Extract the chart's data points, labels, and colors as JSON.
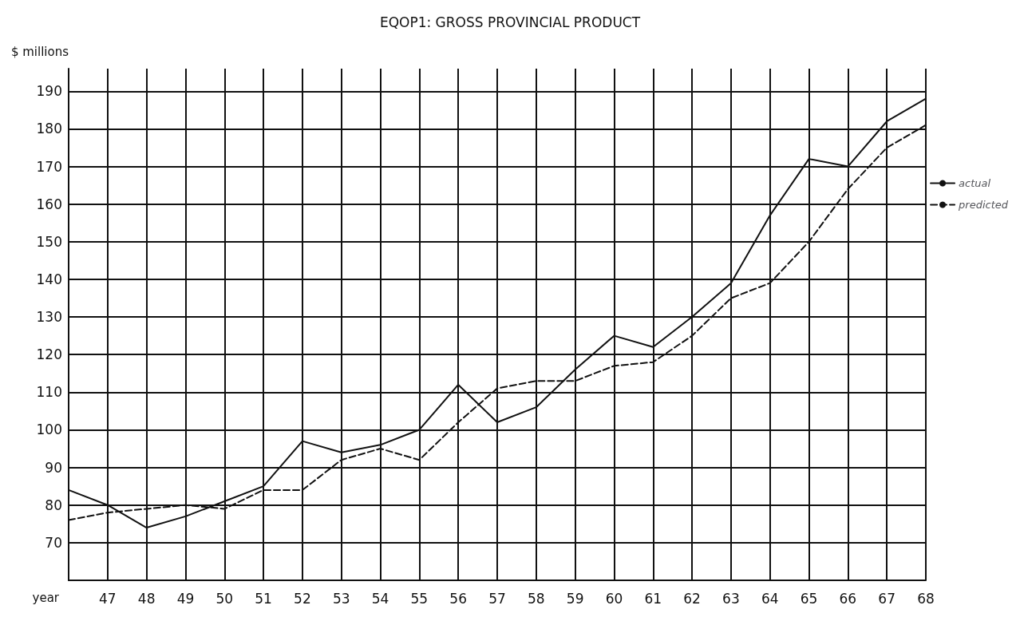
{
  "chart_data": {
    "type": "line",
    "title": "EQOP1: GROSS PROVINCIAL PRODUCT",
    "ylabel": "$ millions",
    "xlabel": "year",
    "categories": [
      null,
      "47",
      "48",
      "49",
      "50",
      "51",
      "52",
      "53",
      "54",
      "55",
      "56",
      "57",
      "58",
      "59",
      "60",
      "61",
      "62",
      "63",
      "64",
      "65",
      "66",
      "67",
      "68"
    ],
    "series": [
      {
        "name": "actual",
        "color": "#111111",
        "line_style": "solid",
        "values": [
          84,
          80,
          74,
          77,
          81,
          85,
          97,
          94,
          96,
          100,
          112,
          102,
          106,
          116,
          125,
          122,
          130,
          139,
          157,
          172,
          170,
          182,
          188
        ]
      },
      {
        "name": "predicted",
        "color": "#111111",
        "line_style": "dashed",
        "values": [
          76,
          78,
          79,
          80,
          79,
          84,
          84,
          92,
          95,
          92,
          102,
          111,
          113,
          113,
          117,
          118,
          125,
          135,
          139,
          150,
          164,
          175,
          181
        ]
      }
    ],
    "ylim": [
      60,
      196
    ],
    "yticks": [
      70,
      80,
      90,
      100,
      110,
      120,
      130,
      140,
      150,
      160,
      170,
      180,
      190
    ],
    "grid": true,
    "legend": "right",
    "marker": "none"
  }
}
